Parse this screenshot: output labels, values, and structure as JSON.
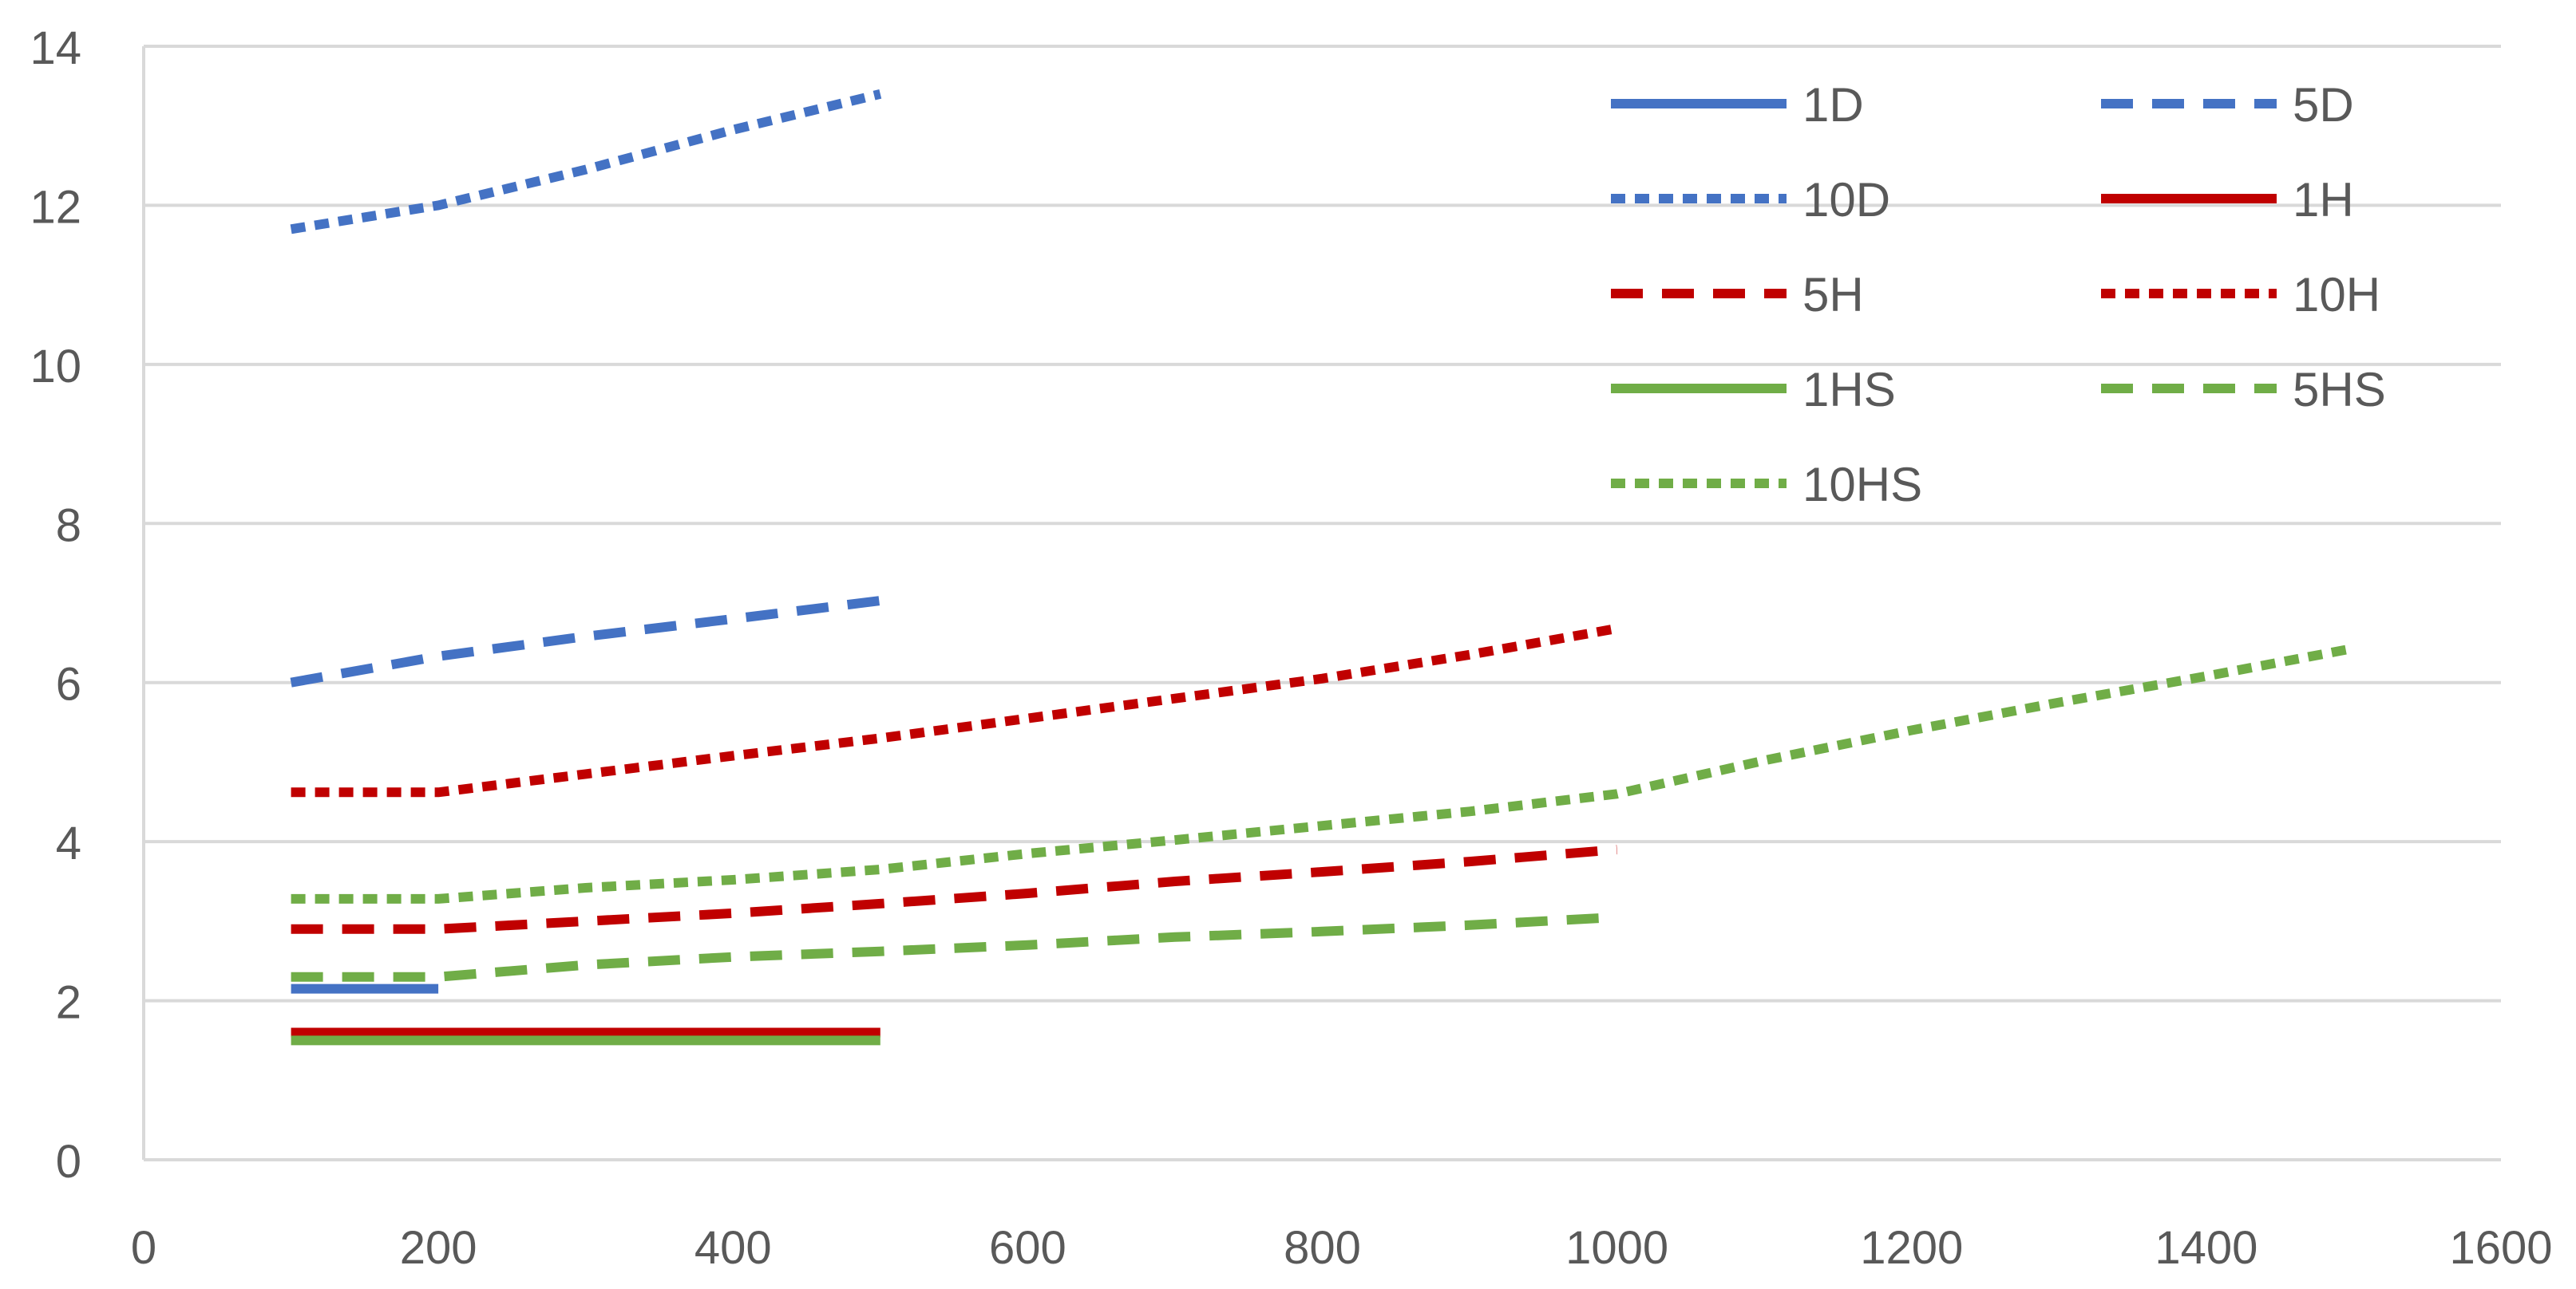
{
  "chart_data": {
    "type": "line",
    "title": "",
    "xlabel": "",
    "ylabel": "",
    "xlim": [
      0,
      1600
    ],
    "ylim": [
      0,
      14
    ],
    "x_ticks": [
      "0",
      "200",
      "400",
      "600",
      "800",
      "1000",
      "1200",
      "1400",
      "1600"
    ],
    "y_ticks": [
      "0",
      "2",
      "4",
      "6",
      "8",
      "10",
      "12",
      "14"
    ],
    "grid": "horizontal",
    "legend_position": "top-right",
    "series": [
      {
        "name": "1D",
        "color": "#4472C4",
        "dash": "solid",
        "points": [
          [
            100,
            2.15
          ],
          [
            200,
            2.15
          ]
        ]
      },
      {
        "name": "5D",
        "color": "#4472C4",
        "dash": "dash",
        "points": [
          [
            100,
            6.0
          ],
          [
            200,
            6.33
          ],
          [
            300,
            6.58
          ],
          [
            400,
            6.8
          ],
          [
            500,
            7.03
          ]
        ]
      },
      {
        "name": "10D",
        "color": "#4472C4",
        "dash": "dot",
        "points": [
          [
            100,
            11.7
          ],
          [
            200,
            12.0
          ],
          [
            300,
            12.45
          ],
          [
            400,
            12.95
          ],
          [
            500,
            13.4
          ]
        ]
      },
      {
        "name": "1H",
        "color": "#C00000",
        "dash": "solid",
        "points": [
          [
            100,
            1.6
          ],
          [
            200,
            1.6
          ],
          [
            300,
            1.6
          ],
          [
            400,
            1.6
          ],
          [
            500,
            1.6
          ]
        ]
      },
      {
        "name": "5H",
        "color": "#C00000",
        "dash": "dash",
        "points": [
          [
            100,
            2.9
          ],
          [
            200,
            2.9
          ],
          [
            300,
            3.0
          ],
          [
            400,
            3.1
          ],
          [
            500,
            3.22
          ],
          [
            600,
            3.35
          ],
          [
            700,
            3.5
          ],
          [
            800,
            3.62
          ],
          [
            900,
            3.75
          ],
          [
            1000,
            3.9
          ]
        ]
      },
      {
        "name": "10H",
        "color": "#C00000",
        "dash": "dot",
        "points": [
          [
            100,
            4.62
          ],
          [
            200,
            4.62
          ],
          [
            300,
            4.85
          ],
          [
            400,
            5.08
          ],
          [
            500,
            5.3
          ],
          [
            600,
            5.55
          ],
          [
            700,
            5.8
          ],
          [
            800,
            6.05
          ],
          [
            900,
            6.35
          ],
          [
            1000,
            6.68
          ]
        ]
      },
      {
        "name": "1HS",
        "color": "#70AD47",
        "dash": "solid",
        "points": [
          [
            100,
            1.5
          ],
          [
            200,
            1.5
          ],
          [
            300,
            1.5
          ],
          [
            400,
            1.5
          ],
          [
            500,
            1.5
          ]
        ]
      },
      {
        "name": "5HS",
        "color": "#70AD47",
        "dash": "dash",
        "points": [
          [
            100,
            2.3
          ],
          [
            200,
            2.3
          ],
          [
            300,
            2.45
          ],
          [
            400,
            2.55
          ],
          [
            500,
            2.62
          ],
          [
            600,
            2.7
          ],
          [
            700,
            2.8
          ],
          [
            800,
            2.87
          ],
          [
            900,
            2.95
          ],
          [
            1000,
            3.05
          ]
        ]
      },
      {
        "name": "10HS",
        "color": "#70AD47",
        "dash": "dot",
        "points": [
          [
            100,
            3.28
          ],
          [
            200,
            3.28
          ],
          [
            300,
            3.42
          ],
          [
            400,
            3.52
          ],
          [
            500,
            3.65
          ],
          [
            600,
            3.85
          ],
          [
            700,
            4.02
          ],
          [
            800,
            4.2
          ],
          [
            900,
            4.38
          ],
          [
            1000,
            4.6
          ],
          [
            1100,
            5.02
          ],
          [
            1200,
            5.4
          ],
          [
            1300,
            5.75
          ],
          [
            1400,
            6.08
          ],
          [
            1500,
            6.43
          ]
        ]
      }
    ]
  }
}
